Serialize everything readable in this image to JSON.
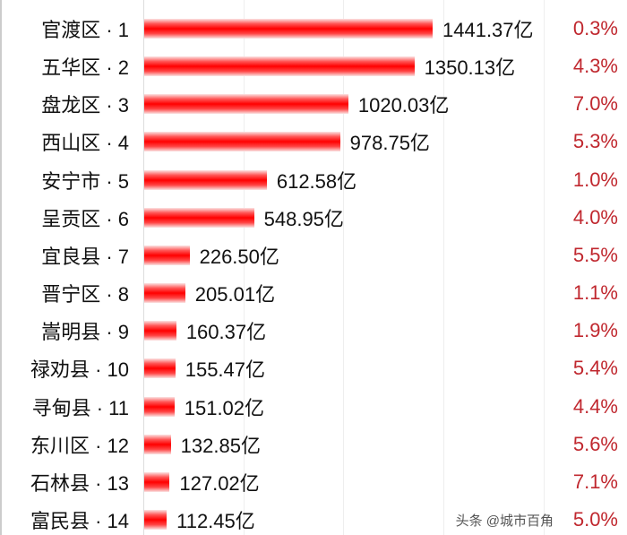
{
  "chart_data": {
    "type": "bar",
    "orientation": "horizontal",
    "categories": [
      "官渡区 · 1",
      "五华区 · 2",
      "盘龙区 · 3",
      "西山区 · 4",
      "安宁市 · 5",
      "呈贡区 · 6",
      "宜良县 · 7",
      "晋宁区 · 8",
      "嵩明县 · 9",
      "禄劝县 · 10",
      "寻甸县 · 11",
      "东川区 · 12",
      "石林县 · 13",
      "富民县 · 14"
    ],
    "values": [
      1441.37,
      1350.13,
      1020.03,
      978.75,
      612.58,
      548.95,
      226.5,
      205.01,
      160.37,
      155.47,
      151.02,
      132.85,
      127.02,
      112.45
    ],
    "value_labels": [
      "1441.37亿",
      "1350.13亿",
      "1020.03亿",
      "978.75亿",
      "612.58亿",
      "548.95亿",
      "226.50亿",
      "205.01亿",
      "160.37亿",
      "155.47亿",
      "151.02亿",
      "132.85亿",
      "127.02亿",
      "112.45亿"
    ],
    "growth_labels": [
      "0.3%",
      "4.3%",
      "7.0%",
      "5.3%",
      "1.0%",
      "4.0%",
      "5.5%",
      "1.1%",
      "1.9%",
      "5.4%",
      "4.4%",
      "5.6%",
      "7.1%",
      "5.0%"
    ],
    "xlim": [
      0,
      2000
    ],
    "grid": true,
    "bar_color": "#ff0000",
    "growth_color": "#c0282f"
  },
  "watermark": "头条 @城市百角"
}
